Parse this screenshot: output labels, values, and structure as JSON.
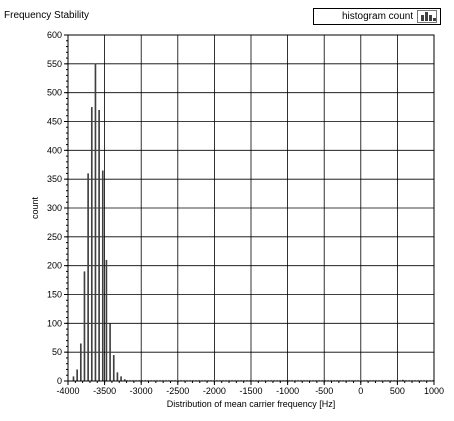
{
  "chart_data": {
    "type": "bar",
    "title": "Frequency Stability",
    "xlabel": "Distribution of  mean carrier frequency [Hz]",
    "ylabel": "count",
    "xlim": [
      -4000,
      1000
    ],
    "ylim": [
      0,
      600
    ],
    "xticks": [
      -4000,
      -3500,
      -3000,
      -2500,
      -2000,
      -1500,
      -1000,
      -500,
      0,
      500,
      1000
    ],
    "yticks": [
      0,
      50,
      100,
      150,
      200,
      250,
      300,
      350,
      400,
      450,
      500,
      550,
      600
    ],
    "grid": true,
    "legend": {
      "placement": "top-right"
    },
    "bin_width": 50,
    "series": [
      {
        "name": "histogram count",
        "color": "#404040",
        "bins": [
          {
            "x": -3925,
            "y": 8
          },
          {
            "x": -3875,
            "y": 20
          },
          {
            "x": -3825,
            "y": 65
          },
          {
            "x": -3775,
            "y": 190
          },
          {
            "x": -3725,
            "y": 360
          },
          {
            "x": -3675,
            "y": 475
          },
          {
            "x": -3625,
            "y": 550
          },
          {
            "x": -3575,
            "y": 470
          },
          {
            "x": -3525,
            "y": 365
          },
          {
            "x": -3475,
            "y": 210
          },
          {
            "x": -3425,
            "y": 100
          },
          {
            "x": -3375,
            "y": 45
          },
          {
            "x": -3325,
            "y": 15
          },
          {
            "x": -3275,
            "y": 8
          },
          {
            "x": -3225,
            "y": 3
          },
          {
            "x": 575,
            "y": 2
          }
        ]
      }
    ]
  }
}
